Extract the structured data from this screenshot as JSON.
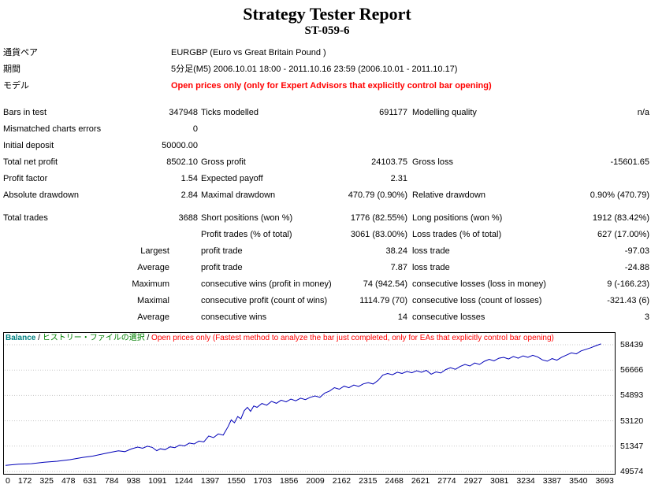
{
  "title": "Strategy Tester Report",
  "subtitle": "ST-059-6",
  "info": {
    "rows": [
      {
        "label": "通貨ペア",
        "value": "EURGBP (Euro vs Great Britain Pound )"
      },
      {
        "label": "期間",
        "value": "5分足(M5) 2006.10.01 18:00 - 2011.10.16 23:59 (2006.10.01 - 2011.10.17)"
      },
      {
        "label": "モデル",
        "value": "Open prices only (only for Expert Advisors that explicitly control bar opening)"
      }
    ]
  },
  "stats": {
    "rows": [
      {
        "c1": "Bars in test",
        "c2": "347948",
        "c3": "Ticks modelled",
        "c4": "691177",
        "c5": "Modelling quality",
        "c6": "n/a"
      },
      {
        "c1": "Mismatched charts errors",
        "c2": "0",
        "c3": "",
        "c4": "",
        "c5": "",
        "c6": ""
      },
      {
        "c1": "Initial deposit",
        "c2": "50000.00",
        "c3": "",
        "c4": "",
        "c5": "",
        "c6": ""
      },
      {
        "c1": "Total net profit",
        "c2": "8502.10",
        "c3": "Gross profit",
        "c4": "24103.75",
        "c5": "Gross loss",
        "c6": "-15601.65"
      },
      {
        "c1": "Profit factor",
        "c2": "1.54",
        "c3": "Expected payoff",
        "c4": "2.31",
        "c5": "",
        "c6": ""
      },
      {
        "c1": "Absolute drawdown",
        "c2": "2.84",
        "c3": "Maximal drawdown",
        "c4": "470.79 (0.90%)",
        "c5": "Relative drawdown",
        "c6": "0.90% (470.79)"
      },
      {
        "c1": "Total trades",
        "c2": "3688",
        "c3": "Short positions (won %)",
        "c4": "1776 (82.55%)",
        "c5": "Long positions (won %)",
        "c6": "1912 (83.42%)"
      },
      {
        "c1": "",
        "c2": "",
        "c3": "Profit trades (% of total)",
        "c4": "3061 (83.00%)",
        "c5": "Loss trades (% of total)",
        "c6": "627 (17.00%)"
      },
      {
        "c1": "",
        "c2": "Largest",
        "c3": "profit trade",
        "c4": "38.24",
        "c5": "loss trade",
        "c6": "-97.03"
      },
      {
        "c1": "",
        "c2": "Average",
        "c3": "profit trade",
        "c4": "7.87",
        "c5": "loss trade",
        "c6": "-24.88"
      },
      {
        "c1": "",
        "c2": "Maximum",
        "c3": "consecutive wins (profit in money)",
        "c4": "74 (942.54)",
        "c5": "consecutive losses (loss in money)",
        "c6": "9 (-166.23)"
      },
      {
        "c1": "",
        "c2": "Maximal",
        "c3": "consecutive profit (count of wins)",
        "c4": "1114.79 (70)",
        "c5": "consecutive loss (count of losses)",
        "c6": "-321.43 (6)"
      },
      {
        "c1": "",
        "c2": "Average",
        "c3": "consecutive wins",
        "c4": "14",
        "c5": "consecutive losses",
        "c6": "3"
      }
    ]
  },
  "chart_header": {
    "series": "Balance",
    "separator": " / ",
    "history_label": "ヒストリー・ファイルの選択",
    "note": "Open prices only (Fastest method to analyze the bar just completed, only for EAs that explicitly control bar opening)"
  },
  "chart_data": {
    "type": "line",
    "title": "Balance",
    "xlabel": "",
    "ylabel": "",
    "legend_position": "top-left",
    "grid": "horizontal",
    "xlim": [
      0,
      3720
    ],
    "ylim": [
      49574,
      58439
    ],
    "x_ticks": [
      0,
      172,
      325,
      478,
      631,
      784,
      938,
      1091,
      1244,
      1397,
      1550,
      1703,
      1856,
      2009,
      2162,
      2315,
      2468,
      2621,
      2774,
      2927,
      3081,
      3234,
      3387,
      3540,
      3693
    ],
    "y_ticks": [
      58439,
      56666,
      54893,
      53120,
      51347,
      49574
    ],
    "colors": {
      "line": "#0000b8",
      "grid": "#c8c8c8",
      "balance_label": "#008080",
      "history_label": "#008000",
      "note": "#ff0000"
    },
    "series": [
      {
        "name": "Balance",
        "points": [
          [
            0,
            50000
          ],
          [
            80,
            50080
          ],
          [
            160,
            50120
          ],
          [
            240,
            50220
          ],
          [
            320,
            50290
          ],
          [
            400,
            50400
          ],
          [
            480,
            50560
          ],
          [
            540,
            50650
          ],
          [
            600,
            50790
          ],
          [
            650,
            50910
          ],
          [
            700,
            51020
          ],
          [
            740,
            50960
          ],
          [
            780,
            51150
          ],
          [
            820,
            51280
          ],
          [
            850,
            51200
          ],
          [
            880,
            51340
          ],
          [
            910,
            51260
          ],
          [
            938,
            51030
          ],
          [
            960,
            51160
          ],
          [
            990,
            51100
          ],
          [
            1020,
            51300
          ],
          [
            1050,
            51240
          ],
          [
            1080,
            51420
          ],
          [
            1110,
            51360
          ],
          [
            1140,
            51560
          ],
          [
            1170,
            51500
          ],
          [
            1200,
            51700
          ],
          [
            1230,
            51640
          ],
          [
            1260,
            52060
          ],
          [
            1290,
            51940
          ],
          [
            1320,
            52200
          ],
          [
            1350,
            52120
          ],
          [
            1380,
            52700
          ],
          [
            1400,
            53180
          ],
          [
            1420,
            52980
          ],
          [
            1440,
            53420
          ],
          [
            1460,
            53260
          ],
          [
            1480,
            53820
          ],
          [
            1500,
            54060
          ],
          [
            1520,
            53780
          ],
          [
            1540,
            54160
          ],
          [
            1560,
            54060
          ],
          [
            1590,
            54330
          ],
          [
            1620,
            54210
          ],
          [
            1650,
            54480
          ],
          [
            1680,
            54340
          ],
          [
            1710,
            54560
          ],
          [
            1740,
            54440
          ],
          [
            1770,
            54640
          ],
          [
            1800,
            54520
          ],
          [
            1830,
            54700
          ],
          [
            1860,
            54600
          ],
          [
            1890,
            54760
          ],
          [
            1920,
            54860
          ],
          [
            1950,
            54760
          ],
          [
            1980,
            55060
          ],
          [
            2010,
            55200
          ],
          [
            2040,
            55440
          ],
          [
            2070,
            55330
          ],
          [
            2100,
            55540
          ],
          [
            2130,
            55430
          ],
          [
            2160,
            55620
          ],
          [
            2190,
            55520
          ],
          [
            2220,
            55700
          ],
          [
            2250,
            55790
          ],
          [
            2280,
            55690
          ],
          [
            2310,
            55940
          ],
          [
            2340,
            56320
          ],
          [
            2370,
            56430
          ],
          [
            2400,
            56340
          ],
          [
            2430,
            56520
          ],
          [
            2460,
            56430
          ],
          [
            2490,
            56570
          ],
          [
            2520,
            56480
          ],
          [
            2550,
            56620
          ],
          [
            2580,
            56510
          ],
          [
            2610,
            56650
          ],
          [
            2640,
            56380
          ],
          [
            2670,
            56540
          ],
          [
            2700,
            56460
          ],
          [
            2730,
            56700
          ],
          [
            2760,
            56830
          ],
          [
            2790,
            56720
          ],
          [
            2820,
            56920
          ],
          [
            2850,
            57060
          ],
          [
            2880,
            56950
          ],
          [
            2910,
            57160
          ],
          [
            2940,
            57060
          ],
          [
            2970,
            57280
          ],
          [
            3000,
            57420
          ],
          [
            3030,
            57310
          ],
          [
            3060,
            57500
          ],
          [
            3090,
            57560
          ],
          [
            3120,
            57440
          ],
          [
            3150,
            57620
          ],
          [
            3180,
            57500
          ],
          [
            3210,
            57660
          ],
          [
            3240,
            57560
          ],
          [
            3270,
            57700
          ],
          [
            3300,
            57590
          ],
          [
            3330,
            57380
          ],
          [
            3360,
            57290
          ],
          [
            3390,
            57470
          ],
          [
            3420,
            57360
          ],
          [
            3450,
            57570
          ],
          [
            3480,
            57720
          ],
          [
            3510,
            57870
          ],
          [
            3540,
            57800
          ],
          [
            3570,
            58010
          ],
          [
            3600,
            58120
          ],
          [
            3630,
            58230
          ],
          [
            3660,
            58360
          ],
          [
            3693,
            58500
          ]
        ]
      }
    ]
  }
}
